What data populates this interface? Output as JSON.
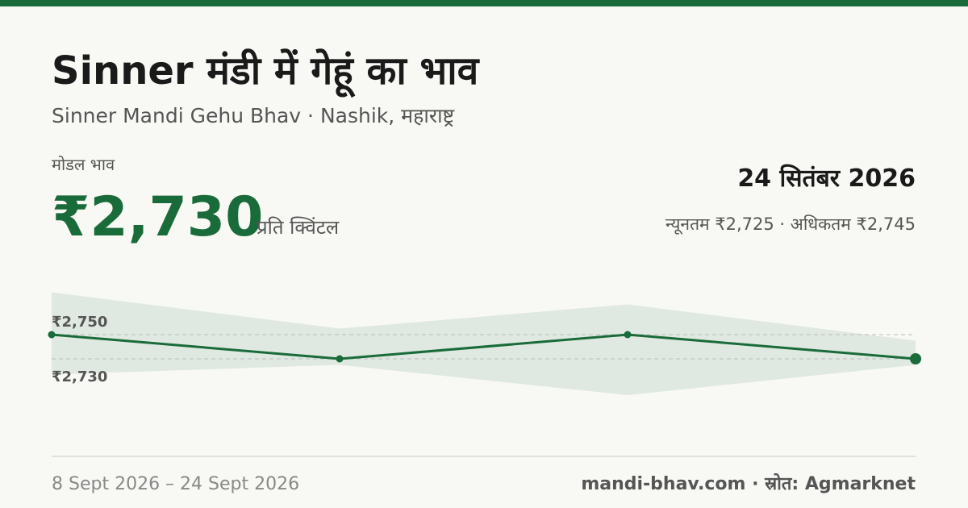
{
  "header": {
    "title": "Sinner मंडी में गेहूं का भाव",
    "subtitle": "Sinner Mandi Gehu Bhav · Nashik, महाराष्ट्र"
  },
  "summary": {
    "label": "मोडल भाव",
    "price": "₹2,730",
    "unit": "प्रति क्विंटल",
    "date": "24 सितंबर 2026",
    "range": "न्यूनतम ₹2,725 · अधिकतम ₹2,745"
  },
  "chart_data": {
    "type": "line",
    "categories": [
      null,
      null,
      null,
      null
    ],
    "values": [
      2750,
      2730,
      2750,
      2730
    ],
    "band": {
      "low": [
        2717,
        2725,
        2700,
        2725
      ],
      "high": [
        2785,
        2755,
        2775,
        2745
      ]
    },
    "color": "#1a6b3a",
    "band_color": "#dfe9e1",
    "ylim": [
      2670,
      2800
    ],
    "yticks": [
      {
        "value": 2730,
        "label": "₹2,730"
      },
      {
        "value": 2750,
        "label": "₹2,750"
      }
    ],
    "grid": true
  },
  "footer": {
    "period": "8 Sept 2026 – 24 Sept 2026",
    "source": "mandi-bhav.com · स्रोत: Agmarknet"
  }
}
